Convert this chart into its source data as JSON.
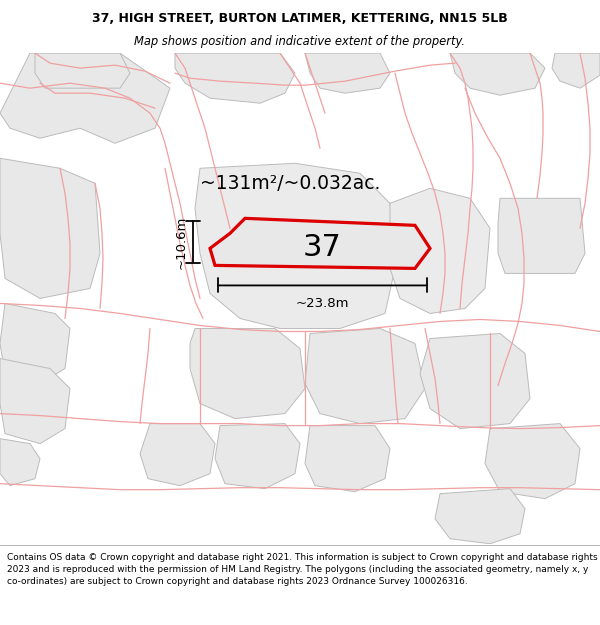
{
  "title_line1": "37, HIGH STREET, BURTON LATIMER, KETTERING, NN15 5LB",
  "title_line2": "Map shows position and indicative extent of the property.",
  "footer_text": "Contains OS data © Crown copyright and database right 2021. This information is subject to Crown copyright and database rights 2023 and is reproduced with the permission of HM Land Registry. The polygons (including the associated geometry, namely x, y co-ordinates) are subject to Crown copyright and database rights 2023 Ordnance Survey 100026316.",
  "area_label": "~131m²/~0.032ac.",
  "number_label": "37",
  "width_label": "~23.8m",
  "height_label": "~10.6m",
  "bg_color": "#ffffff",
  "map_bg": "#ffffff",
  "gray_fill": "#e8e8e8",
  "gray_edge": "#bbbbbb",
  "pink_line": "#f0a0a0",
  "property_edge": "#dd0000",
  "property_fill": "#e8e8e8"
}
